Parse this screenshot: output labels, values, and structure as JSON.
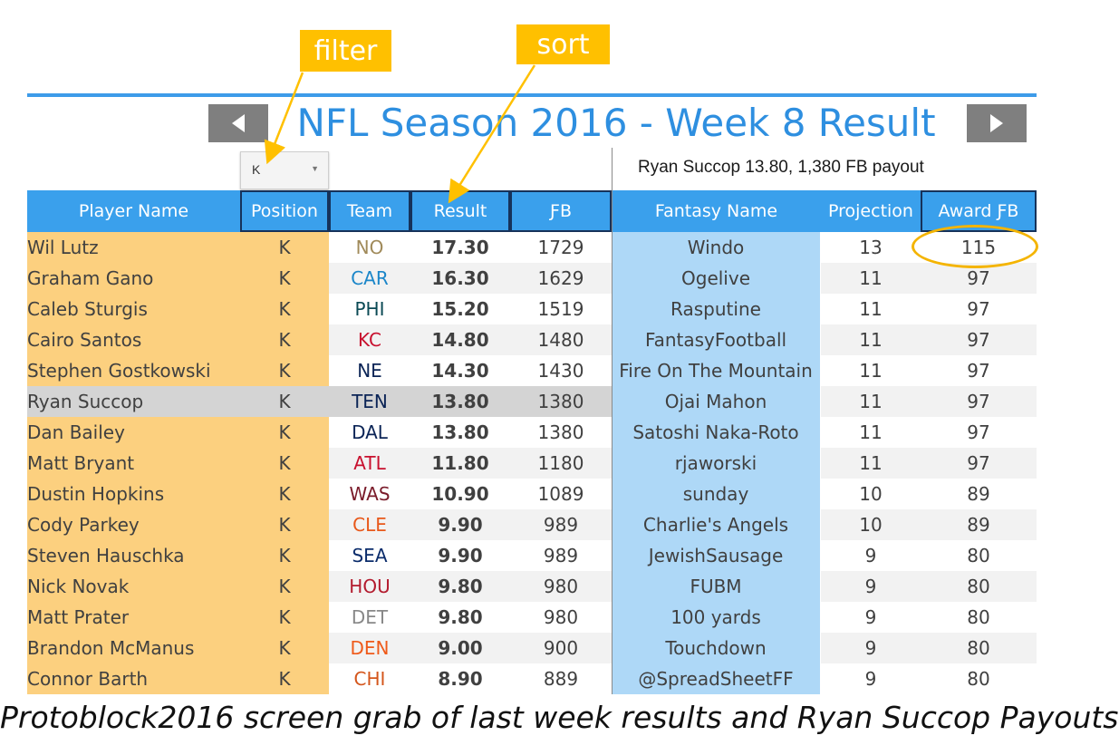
{
  "callouts": {
    "filter": "filter",
    "sort": "sort"
  },
  "title": "NFL Season 2016 - Week 8 Result",
  "filter": {
    "selected": "K"
  },
  "info_text": "Ryan Succop 13.80, 1,380 FB payout",
  "columns": [
    "Player Name",
    "Position",
    "Team",
    "Result",
    "ƑB",
    "Fantasy Name",
    "Projection",
    "Award ƑB"
  ],
  "rows": [
    {
      "player": "Wil Lutz",
      "position": "K",
      "team": "NO",
      "result": "17.30",
      "fb": "1729",
      "fantasy": "Windo",
      "projection": "13",
      "award": "115"
    },
    {
      "player": "Graham Gano",
      "position": "K",
      "team": "CAR",
      "result": "16.30",
      "fb": "1629",
      "fantasy": "Ogelive",
      "projection": "11",
      "award": "97"
    },
    {
      "player": "Caleb Sturgis",
      "position": "K",
      "team": "PHI",
      "result": "15.20",
      "fb": "1519",
      "fantasy": "Rasputine",
      "projection": "11",
      "award": "97"
    },
    {
      "player": "Cairo Santos",
      "position": "K",
      "team": "KC",
      "result": "14.80",
      "fb": "1480",
      "fantasy": "FantasyFootball",
      "projection": "11",
      "award": "97"
    },
    {
      "player": "Stephen Gostkowski",
      "position": "K",
      "team": "NE",
      "result": "14.30",
      "fb": "1430",
      "fantasy": "Fire On The Mountain",
      "projection": "11",
      "award": "97"
    },
    {
      "player": "Ryan Succop",
      "position": "K",
      "team": "TEN",
      "result": "13.80",
      "fb": "1380",
      "fantasy": "Ojai Mahon",
      "projection": "11",
      "award": "97"
    },
    {
      "player": "Dan Bailey",
      "position": "K",
      "team": "DAL",
      "result": "13.80",
      "fb": "1380",
      "fantasy": "Satoshi Naka-Roto",
      "projection": "11",
      "award": "97"
    },
    {
      "player": "Matt Bryant",
      "position": "K",
      "team": "ATL",
      "result": "11.80",
      "fb": "1180",
      "fantasy": "rjaworski",
      "projection": "11",
      "award": "97"
    },
    {
      "player": "Dustin Hopkins",
      "position": "K",
      "team": "WAS",
      "result": "10.90",
      "fb": "1089",
      "fantasy": "sunday",
      "projection": "10",
      "award": "89"
    },
    {
      "player": "Cody Parkey",
      "position": "K",
      "team": "CLE",
      "result": "9.90",
      "fb": "989",
      "fantasy": "Charlie's Angels",
      "projection": "10",
      "award": "89"
    },
    {
      "player": "Steven Hauschka",
      "position": "K",
      "team": "SEA",
      "result": "9.90",
      "fb": "989",
      "fantasy": "JewishSausage",
      "projection": "9",
      "award": "80"
    },
    {
      "player": "Nick Novak",
      "position": "K",
      "team": "HOU",
      "result": "9.80",
      "fb": "980",
      "fantasy": "FUBM",
      "projection": "9",
      "award": "80"
    },
    {
      "player": "Matt Prater",
      "position": "K",
      "team": "DET",
      "result": "9.80",
      "fb": "980",
      "fantasy": "100 yards",
      "projection": "9",
      "award": "80"
    },
    {
      "player": "Brandon McManus",
      "position": "K",
      "team": "DEN",
      "result": "9.00",
      "fb": "900",
      "fantasy": "Touchdown",
      "projection": "9",
      "award": "80"
    },
    {
      "player": "Connor Barth",
      "position": "K",
      "team": "CHI",
      "result": "8.90",
      "fb": "889",
      "fantasy": "@SpreadSheetFF",
      "projection": "9",
      "award": "80"
    }
  ],
  "team_colors": {
    "NO": "#a08a5a",
    "CAR": "#1b86c9",
    "PHI": "#0b4a55",
    "KC": "#c8102e",
    "NE": "#0b2456",
    "TEN": "#0b2456",
    "DAL": "#0b2456",
    "ATL": "#c8102e",
    "WAS": "#7a1b2a",
    "CLE": "#e8581a",
    "SEA": "#0b2c6b",
    "HOU": "#b31b2e",
    "DET": "#888888",
    "DEN": "#ef5a1a",
    "CHI": "#d4561c"
  },
  "highlighted_player": "Ryan Succop",
  "caption": "Protoblock2016 screen grab of last week results and Ryan Succop Payouts",
  "colors": {
    "accent": "#3aa0ec",
    "callout": "#ffc000",
    "left_columns": "#fcd07f",
    "fantasy_column": "#aed8f7"
  }
}
